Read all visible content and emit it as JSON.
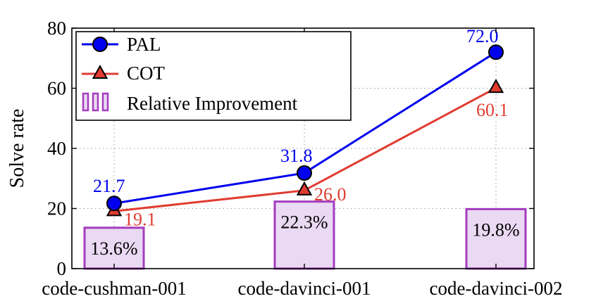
{
  "chart_data": {
    "type": "line",
    "ylabel": "Solve rate",
    "xlabel": "",
    "ylim": [
      0,
      80
    ],
    "yticks": [
      0,
      20,
      40,
      60,
      80
    ],
    "grid": true,
    "legend_position": "top-left",
    "categories": [
      "code-cushman-001",
      "code-davinci-001",
      "code-davinci-002"
    ],
    "series": [
      {
        "name": "PAL",
        "values": [
          21.7,
          31.8,
          72.0
        ],
        "labels": [
          "21.7",
          "31.8",
          "72.0"
        ],
        "color": "#0000ee",
        "marker": "circle"
      },
      {
        "name": "COT",
        "values": [
          19.1,
          26.0,
          60.1
        ],
        "labels": [
          "19.1",
          "26.0",
          "60.1"
        ],
        "color": "#e03c31",
        "marker": "triangle"
      }
    ],
    "bars": {
      "name": "Relative Improvement",
      "values": [
        13.6,
        22.3,
        19.8
      ],
      "labels": [
        "13.6%",
        "22.3%",
        "19.8%"
      ],
      "fill": "#ead9f2",
      "stroke": "#a43cbf"
    }
  }
}
